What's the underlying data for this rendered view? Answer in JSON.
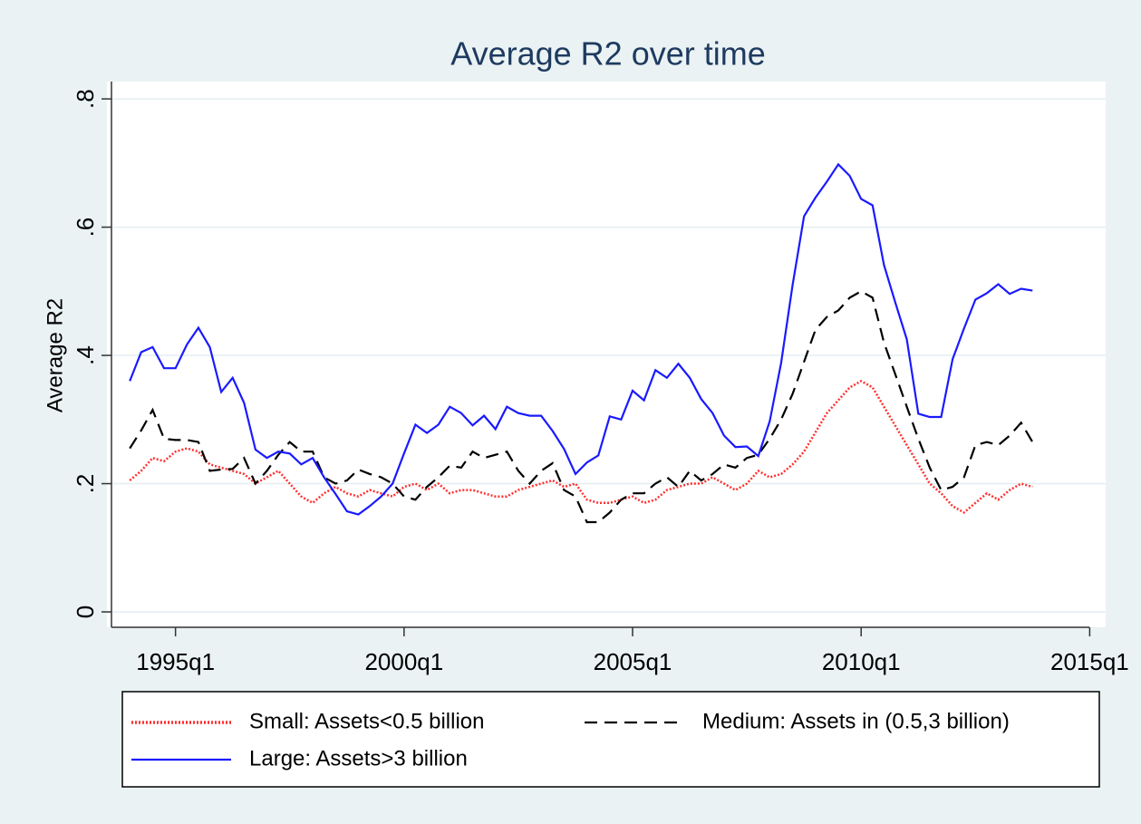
{
  "chart_data": {
    "type": "line",
    "title": "Average R2 over time",
    "y_label": "Average R2",
    "x": [
      "1994q1",
      "1994q2",
      "1994q3",
      "1994q4",
      "1995q1",
      "1995q2",
      "1995q3",
      "1995q4",
      "1996q1",
      "1996q2",
      "1996q3",
      "1996q4",
      "1997q1",
      "1997q2",
      "1997q3",
      "1997q4",
      "1998q1",
      "1998q2",
      "1998q3",
      "1998q4",
      "1999q1",
      "1999q2",
      "1999q3",
      "1999q4",
      "2000q1",
      "2000q2",
      "2000q3",
      "2000q4",
      "2001q1",
      "2001q2",
      "2001q3",
      "2001q4",
      "2002q1",
      "2002q2",
      "2002q3",
      "2002q4",
      "2003q1",
      "2003q2",
      "2003q3",
      "2003q4",
      "2004q1",
      "2004q2",
      "2004q3",
      "2004q4",
      "2005q1",
      "2005q2",
      "2005q3",
      "2005q4",
      "2006q1",
      "2006q2",
      "2006q3",
      "2006q4",
      "2007q1",
      "2007q2",
      "2007q3",
      "2007q4",
      "2008q1",
      "2008q2",
      "2008q3",
      "2008q4",
      "2009q1",
      "2009q2",
      "2009q3",
      "2009q4",
      "2010q1",
      "2010q2",
      "2010q3",
      "2010q4",
      "2011q1",
      "2011q2",
      "2011q3",
      "2011q4",
      "2012q1",
      "2012q2",
      "2012q3",
      "2012q4",
      "2013q1",
      "2013q2",
      "2013q3",
      "2013q4"
    ],
    "series": [
      {
        "name": "Small: Assets<0.5 billion",
        "color": "#ff3030",
        "dash": "dot",
        "values": [
          0.205,
          0.22,
          0.24,
          0.235,
          0.25,
          0.255,
          0.25,
          0.23,
          0.225,
          0.22,
          0.215,
          0.2,
          0.21,
          0.22,
          0.2,
          0.18,
          0.17,
          0.185,
          0.195,
          0.185,
          0.18,
          0.19,
          0.185,
          0.18,
          0.195,
          0.2,
          0.19,
          0.2,
          0.185,
          0.19,
          0.19,
          0.185,
          0.18,
          0.18,
          0.19,
          0.195,
          0.2,
          0.205,
          0.195,
          0.2,
          0.175,
          0.17,
          0.17,
          0.175,
          0.18,
          0.17,
          0.175,
          0.19,
          0.195,
          0.2,
          0.2,
          0.21,
          0.2,
          0.19,
          0.2,
          0.22,
          0.21,
          0.215,
          0.23,
          0.25,
          0.28,
          0.31,
          0.33,
          0.35,
          0.36,
          0.35,
          0.32,
          0.29,
          0.26,
          0.23,
          0.2,
          0.185,
          0.165,
          0.155,
          0.17,
          0.185,
          0.175,
          0.19,
          0.2,
          0.195
        ]
      },
      {
        "name": "Medium: Assets in (0.5,3 billion)",
        "color": "#000000",
        "dash": "dash",
        "values": [
          0.255,
          0.283,
          0.315,
          0.27,
          0.268,
          0.268,
          0.265,
          0.22,
          0.222,
          0.223,
          0.24,
          0.2,
          0.22,
          0.245,
          0.265,
          0.25,
          0.25,
          0.21,
          0.2,
          0.205,
          0.222,
          0.215,
          0.21,
          0.2,
          0.18,
          0.175,
          0.195,
          0.21,
          0.228,
          0.225,
          0.25,
          0.24,
          0.245,
          0.25,
          0.22,
          0.2,
          0.22,
          0.232,
          0.19,
          0.18,
          0.14,
          0.14,
          0.155,
          0.175,
          0.185,
          0.185,
          0.2,
          0.21,
          0.195,
          0.22,
          0.205,
          0.215,
          0.23,
          0.225,
          0.24,
          0.245,
          0.27,
          0.3,
          0.34,
          0.39,
          0.44,
          0.46,
          0.47,
          0.49,
          0.5,
          0.49,
          0.42,
          0.37,
          0.32,
          0.27,
          0.225,
          0.19,
          0.195,
          0.21,
          0.26,
          0.265,
          0.26,
          0.275,
          0.295,
          0.265
        ]
      },
      {
        "name": "Large: Assets>3 billion",
        "color": "#1a1aff",
        "dash": "solid",
        "values": [
          0.36,
          0.405,
          0.413,
          0.38,
          0.38,
          0.417,
          0.443,
          0.413,
          0.343,
          0.365,
          0.326,
          0.253,
          0.24,
          0.25,
          0.247,
          0.23,
          0.24,
          0.21,
          0.184,
          0.157,
          0.152,
          0.165,
          0.18,
          0.2,
          0.247,
          0.292,
          0.279,
          0.292,
          0.32,
          0.31,
          0.291,
          0.306,
          0.285,
          0.32,
          0.31,
          0.306,
          0.306,
          0.282,
          0.254,
          0.215,
          0.233,
          0.244,
          0.305,
          0.3,
          0.345,
          0.33,
          0.377,
          0.365,
          0.387,
          0.365,
          0.332,
          0.31,
          0.275,
          0.257,
          0.258,
          0.243,
          0.297,
          0.388,
          0.51,
          0.617,
          0.646,
          0.671,
          0.698,
          0.68,
          0.644,
          0.634,
          0.541,
          0.482,
          0.425,
          0.309,
          0.304,
          0.304,
          0.394,
          0.442,
          0.487,
          0.497,
          0.511,
          0.496,
          0.504,
          0.501
        ]
      }
    ],
    "xlim": [
      "1993q3",
      "2015q2"
    ],
    "xticks": [
      "1995q1",
      "2000q1",
      "2005q1",
      "2010q1",
      "2015q1"
    ],
    "ylim": [
      -0.024,
      0.827
    ],
    "yticks": [
      0,
      {
        "value": 0.2,
        "label": ".2"
      },
      {
        "value": 0.4,
        "label": ".4"
      },
      {
        "value": 0.6,
        "label": ".6"
      },
      {
        "value": 0.8,
        "label": ".8"
      }
    ],
    "grid": true
  }
}
